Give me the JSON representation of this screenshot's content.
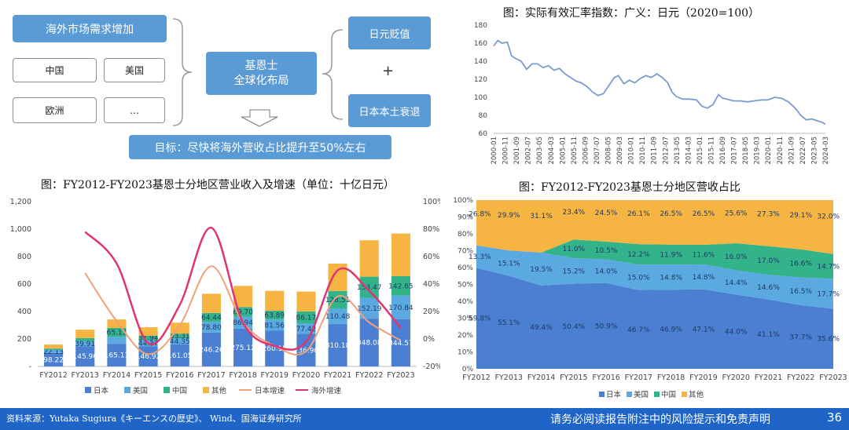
{
  "diagram": {
    "demand": "海外市场需求增加",
    "regions": [
      "中国",
      "美国",
      "欧洲",
      "…"
    ],
    "center": [
      "基恩士",
      "全球化布局"
    ],
    "right_top": "日元贬值",
    "plus": "+",
    "right_bottom": "日本本土衰退",
    "goal": "目标：尽快将海外营收占比提升至50%左右"
  },
  "footer": {
    "source": "资料来源：Yutaka Sugiura《キーエンスの歴史》、 Wind、国海证券研究所",
    "disclaimer": "请务必阅读报告附注中的风险提示和免责声明",
    "page": "36"
  },
  "colors": {
    "japan": "#4a7fd1",
    "us": "#5aa9e0",
    "china": "#33b38a",
    "other": "#f6b443",
    "japan_growth": "#f0a07a",
    "overseas_growth": "#e0356f",
    "rate_line": "#7a9ccc",
    "footer": "#1f64c7"
  },
  "chart_data": [
    {
      "type": "line",
      "title": "图：实际有效汇率指数：广义：日元（2020=100）",
      "ylim": [
        60,
        180
      ],
      "yticks": [
        60,
        80,
        100,
        120,
        140,
        160,
        180
      ],
      "xticks": [
        "2000-01",
        "2000-11",
        "2001-09",
        "2002-07",
        "2003-05",
        "2004-03",
        "2005-01",
        "2005-11",
        "2006-09",
        "2007-07",
        "2008-05",
        "2009-03",
        "2010-01",
        "2010-11",
        "2011-09",
        "2012-07",
        "2013-05",
        "2014-03",
        "2015-01",
        "2015-11",
        "2016-09",
        "2017-07",
        "2018-05",
        "2019-03",
        "2020-01",
        "2020-11",
        "2021-09",
        "2022-07",
        "2023-05",
        "2024-03"
      ],
      "x": [
        2000.0,
        2000.3,
        2000.6,
        2001.0,
        2001.3,
        2001.6,
        2002.0,
        2002.4,
        2002.8,
        2003.2,
        2003.6,
        2004.0,
        2004.4,
        2004.8,
        2005.2,
        2005.6,
        2006.0,
        2006.4,
        2006.8,
        2007.2,
        2007.6,
        2008.0,
        2008.4,
        2008.8,
        2009.1,
        2009.5,
        2009.9,
        2010.3,
        2010.7,
        2011.1,
        2011.5,
        2011.9,
        2012.3,
        2012.7,
        2013.0,
        2013.3,
        2013.8,
        2014.3,
        2014.8,
        2015.2,
        2015.6,
        2016.0,
        2016.4,
        2016.7,
        2017.0,
        2017.5,
        2018.0,
        2018.5,
        2019.0,
        2019.5,
        2020.0,
        2020.5,
        2021.0,
        2021.5,
        2022.0,
        2022.4,
        2022.8,
        2023.2,
        2023.6,
        2024.0,
        2024.2
      ],
      "y": [
        157,
        163,
        160,
        161,
        146,
        143,
        140,
        131,
        137,
        137,
        133,
        135,
        130,
        132,
        126,
        122,
        118,
        116,
        112,
        106,
        102,
        104,
        113,
        122,
        124,
        115,
        119,
        116,
        121,
        124,
        122,
        126,
        122,
        116,
        106,
        101,
        98,
        98,
        97,
        90,
        88,
        92,
        103,
        99,
        98,
        96,
        96,
        95,
        96,
        97,
        97,
        100,
        99,
        95,
        88,
        80,
        75,
        76,
        74,
        72,
        70
      ],
      "series": [
        {
          "name": "",
          "color": "#7a9ccc"
        }
      ]
    },
    {
      "type": "bar",
      "title": "图：FY2012-FY2023基恩士分地区营业收入及增速（单位：十亿日元）",
      "categories": [
        "FY2012",
        "FY2013",
        "FY2014",
        "FY2015",
        "FY2016",
        "FY2017",
        "FY2018",
        "FY2019",
        "FY2020",
        "FY2021",
        "FY2022",
        "FY2023"
      ],
      "ylim": [
        0,
        1200
      ],
      "yticks": [
        "-",
        "200",
        "400",
        "600",
        "800",
        "1,000",
        "1,200"
      ],
      "y2lim": [
        -20,
        100
      ],
      "y2ticks": [
        "-20%",
        "0%",
        "20%",
        "40%",
        "60%",
        "80%",
        "100%"
      ],
      "series": [
        {
          "name": "日本",
          "values": [
            98.22,
            145.96,
            165.11,
            146.92,
            161.05,
            246.26,
            275.12,
            260.15,
            236.9,
            310.18,
            348.08,
            344.57
          ],
          "labels": [
            "98.22",
            "145.96",
            "165.11",
            "146.92",
            "161.05",
            "246.26",
            "275.12",
            "260.15",
            "236.90",
            "310.18",
            "348.08",
            "344.57"
          ]
        },
        {
          "name": "美国",
          "values": [
            22.13,
            39.91,
            50.0,
            44.37,
            44.35,
            78.8,
            86.94,
            81.56,
            77.42,
            110.48,
            152.19,
            170.84
          ],
          "labels": [
            "22.13",
            "39.91",
            "",
            "44.37",
            "44.35",
            "78.80",
            "86.94",
            "81.56",
            "77.42",
            "110.48",
            "152.19",
            "170.84"
          ]
        },
        {
          "name": "中国",
          "values": [
            10.0,
            20.0,
            65.13,
            31.94,
            33.31,
            64.44,
            69.7,
            63.89,
            86.17,
            128.51,
            153.47,
            142.65
          ],
          "labels": [
            "",
            "",
            "65.13",
            "31.94",
            "33.31",
            "64.44",
            "69.70",
            "63.89",
            "86.17",
            "128.51",
            "153.47",
            "142.65"
          ]
        },
        {
          "name": "其他",
          "values": [
            29.0,
            62.0,
            62.0,
            62.0,
            80.0,
            140.0,
            155.0,
            145.0,
            145.0,
            200.0,
            265.0,
            310.0
          ],
          "labels": [
            "",
            "",
            "",
            "",
            "",
            "",
            "",
            "",
            "",
            "",
            "",
            ""
          ]
        },
        {
          "name": "日本增速",
          "type": "line",
          "values": [
            null,
            48,
            13,
            -11,
            10,
            53,
            12,
            -5,
            -9,
            31,
            12,
            -1
          ]
        },
        {
          "name": "海外增速",
          "type": "line",
          "values": [
            null,
            78,
            55,
            -3,
            25,
            81,
            12,
            -5,
            -2,
            50,
            35,
            8
          ]
        }
      ],
      "legend": "bottom"
    },
    {
      "type": "area",
      "title": "图：FY2012-FY2023基恩士分地区营收占比",
      "categories": [
        "FY2012",
        "FY2013",
        "FY2014",
        "FY2015",
        "FY2016",
        "FY2017",
        "FY2018",
        "FY2019",
        "FY2020",
        "FY2021",
        "FY2022",
        "FY2023"
      ],
      "ylim": [
        0,
        100
      ],
      "yticks": [
        "0%",
        "10%",
        "20%",
        "30%",
        "40%",
        "50%",
        "60%",
        "70%",
        "80%",
        "90%",
        "100%"
      ],
      "series": [
        {
          "name": "日本",
          "values": [
            59.8,
            55.1,
            49.4,
            50.4,
            50.9,
            46.7,
            46.9,
            47.1,
            44.0,
            41.1,
            37.7,
            35.6
          ],
          "labels": [
            "59.8%",
            "55.1%",
            "49.4%",
            "50.4%",
            "50.9%",
            "46.7%",
            "46.9%",
            "47.1%",
            "44.0%",
            "41.1%",
            "37.7%",
            "35.6%"
          ]
        },
        {
          "name": "美国",
          "values": [
            13.3,
            15.1,
            19.5,
            15.2,
            14.0,
            15.0,
            14.8,
            14.8,
            14.4,
            14.6,
            16.5,
            17.7
          ],
          "labels": [
            "13.3%",
            "15.1%",
            "19.5%",
            "15.2%",
            "14.0%",
            "15.0%",
            "14.8%",
            "14.8%",
            "14.4%",
            "14.6%",
            "16.5%",
            "17.7%"
          ]
        },
        {
          "name": "中国",
          "values": [
            0.1,
            0.0,
            0.0,
            11.0,
            10.5,
            12.2,
            11.9,
            11.6,
            16.0,
            17.0,
            16.6,
            14.7
          ],
          "labels": [
            "",
            "",
            "",
            "11.0%",
            "10.5%",
            "12.2%",
            "11.9%",
            "11.6%",
            "16.0%",
            "17.0%",
            "16.6%",
            "14.7%"
          ]
        },
        {
          "name": "其他",
          "values": [
            26.8,
            29.9,
            31.1,
            23.4,
            24.5,
            26.1,
            26.5,
            26.5,
            25.6,
            27.3,
            29.1,
            32.0
          ],
          "labels": [
            "26.8%",
            "29.9%",
            "31.1%",
            "23.4%",
            "24.5%",
            "26.1%",
            "26.5%",
            "26.5%",
            "25.6%",
            "27.3%",
            "29.1%",
            "32.0%"
          ]
        }
      ],
      "legend": "bottom"
    }
  ]
}
